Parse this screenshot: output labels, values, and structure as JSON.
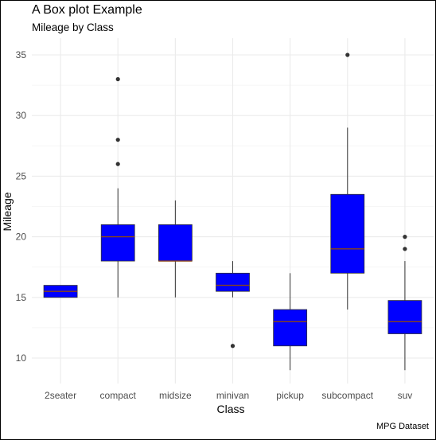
{
  "chart_data": {
    "type": "box",
    "title": "A Box plot Example",
    "subtitle": "Mileage by Class",
    "xlabel": "Class",
    "ylabel": "Mileage",
    "caption": "MPG Dataset",
    "ylim": [
      8,
      37
    ],
    "yticks": [
      10,
      15,
      20,
      25,
      30,
      35
    ],
    "grid": true,
    "colors": {
      "box_fill": "#0000ff",
      "median": "#8b4513",
      "whisker": "#333333",
      "outlier": "#333333",
      "grid": "#ebebeb"
    },
    "categories": [
      "2seater",
      "compact",
      "midsize",
      "minivan",
      "pickup",
      "subcompact",
      "suv"
    ],
    "boxes": [
      {
        "category": "2seater",
        "min": 15,
        "q1": 15,
        "median": 15.5,
        "q3": 16,
        "max": 16,
        "outliers": []
      },
      {
        "category": "compact",
        "min": 15,
        "q1": 18,
        "median": 20,
        "q3": 21,
        "max": 24,
        "outliers": [
          26,
          28,
          33
        ]
      },
      {
        "category": "midsize",
        "min": 15,
        "q1": 18,
        "median": 18,
        "q3": 21,
        "max": 23,
        "outliers": []
      },
      {
        "category": "minivan",
        "min": 15,
        "q1": 15.5,
        "median": 16,
        "q3": 17,
        "max": 18,
        "outliers": [
          11
        ]
      },
      {
        "category": "pickup",
        "min": 9,
        "q1": 11,
        "median": 13,
        "q3": 14,
        "max": 17,
        "outliers": []
      },
      {
        "category": "subcompact",
        "min": 14,
        "q1": 17,
        "median": 19,
        "q3": 23.5,
        "max": 29,
        "outliers": [
          35
        ]
      },
      {
        "category": "suv",
        "min": 9,
        "q1": 12,
        "median": 13,
        "q3": 14.75,
        "max": 18,
        "outliers": [
          19,
          20
        ]
      }
    ]
  }
}
